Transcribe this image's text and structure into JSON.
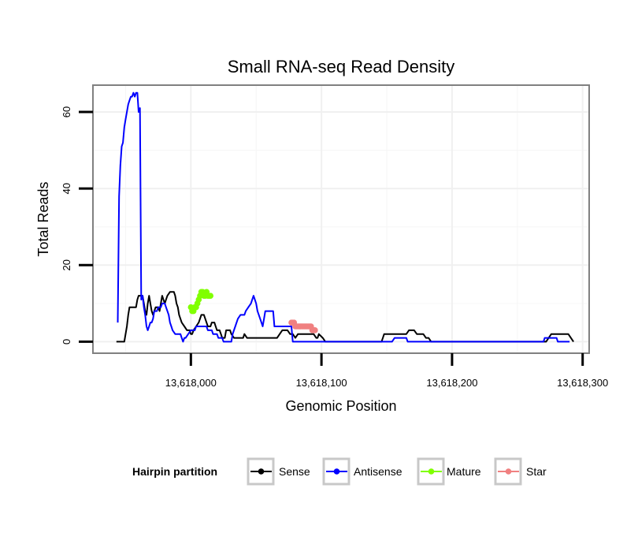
{
  "chart_data": {
    "type": "line",
    "title": "Small RNA-seq Read Density",
    "xlabel": "Genomic Position",
    "ylabel": "Total Reads",
    "xlim": [
      13617925,
      13618305
    ],
    "ylim": [
      -3,
      67
    ],
    "x_ticks": [
      13618000,
      13618100,
      13618200,
      13618300
    ],
    "x_tick_labels": [
      "13,618,000",
      "13,618,100",
      "13,618,200",
      "13,618,300"
    ],
    "y_ticks": [
      0,
      20,
      40,
      60
    ],
    "y_tick_labels": [
      "0",
      "20",
      "40",
      "60"
    ],
    "grid": true,
    "legend": {
      "title": "Hairpin partition",
      "position": "bottom",
      "entries": [
        "Sense",
        "Antisense",
        "Mature",
        "Star"
      ]
    },
    "series": [
      {
        "name": "Sense",
        "color": "#000000",
        "style": "line",
        "points": [
          [
            13617943,
            0
          ],
          [
            13617949,
            0
          ],
          [
            13617951,
            4
          ],
          [
            13617952,
            7
          ],
          [
            13617953,
            9
          ],
          [
            13617958,
            9
          ],
          [
            13617959,
            11
          ],
          [
            13617960,
            12
          ],
          [
            13617963,
            12
          ],
          [
            13617964,
            10
          ],
          [
            13617965,
            8
          ],
          [
            13617966,
            7
          ],
          [
            13617967,
            10
          ],
          [
            13617968,
            12
          ],
          [
            13617969,
            10
          ],
          [
            13617970,
            8
          ],
          [
            13617971,
            7
          ],
          [
            13617972,
            8
          ],
          [
            13617973,
            9
          ],
          [
            13617975,
            9
          ],
          [
            13617976,
            8
          ],
          [
            13617977,
            10
          ],
          [
            13617978,
            12
          ],
          [
            13617979,
            11
          ],
          [
            13617980,
            10
          ],
          [
            13617981,
            11
          ],
          [
            13617982,
            12
          ],
          [
            13617984,
            13
          ],
          [
            13617987,
            13
          ],
          [
            13617988,
            12
          ],
          [
            13617989,
            10
          ],
          [
            13617990,
            9
          ],
          [
            13617991,
            7
          ],
          [
            13617993,
            5
          ],
          [
            13617995,
            4
          ],
          [
            13617997,
            3
          ],
          [
            13617999,
            3
          ],
          [
            13618000,
            2
          ],
          [
            13618001,
            2
          ],
          [
            13618002,
            3
          ],
          [
            13618004,
            4
          ],
          [
            13618006,
            5
          ],
          [
            13618008,
            7
          ],
          [
            13618010,
            7
          ],
          [
            13618012,
            5
          ],
          [
            13618013,
            4
          ],
          [
            13618015,
            4
          ],
          [
            13618016,
            5
          ],
          [
            13618018,
            5
          ],
          [
            13618019,
            4
          ],
          [
            13618020,
            3
          ],
          [
            13618022,
            3
          ],
          [
            13618023,
            2
          ],
          [
            13618024,
            1
          ],
          [
            13618026,
            1
          ],
          [
            13618027,
            3
          ],
          [
            13618030,
            3
          ],
          [
            13618031,
            2
          ],
          [
            13618033,
            1
          ],
          [
            13618040,
            1
          ],
          [
            13618041,
            2
          ],
          [
            13618043,
            1
          ],
          [
            13618066,
            1
          ],
          [
            13618068,
            2
          ],
          [
            13618070,
            3
          ],
          [
            13618074,
            3
          ],
          [
            13618076,
            2
          ],
          [
            13618078,
            2
          ],
          [
            13618080,
            1
          ],
          [
            13618082,
            2
          ],
          [
            13618094,
            2
          ],
          [
            13618096,
            1
          ],
          [
            13618097,
            1
          ],
          [
            13618098,
            2
          ],
          [
            13618101,
            1
          ],
          [
            13618103,
            0
          ],
          [
            13618146,
            0
          ],
          [
            13618147,
            1
          ],
          [
            13618148,
            2
          ],
          [
            13618165,
            2
          ],
          [
            13618167,
            3
          ],
          [
            13618171,
            3
          ],
          [
            13618173,
            2
          ],
          [
            13618178,
            2
          ],
          [
            13618180,
            1
          ],
          [
            13618182,
            1
          ],
          [
            13618184,
            0
          ],
          [
            13618272,
            0
          ],
          [
            13618274,
            1
          ],
          [
            13618276,
            2
          ],
          [
            13618289,
            2
          ],
          [
            13618291,
            1
          ],
          [
            13618293,
            0
          ]
        ]
      },
      {
        "name": "Antisense",
        "color": "#0000ff",
        "style": "line",
        "points": [
          [
            13617944,
            5
          ],
          [
            13617945,
            38
          ],
          [
            13617946,
            46
          ],
          [
            13617947,
            51
          ],
          [
            13617948,
            52
          ],
          [
            13617949,
            56
          ],
          [
            13617950,
            58
          ],
          [
            13617951,
            60
          ],
          [
            13617952,
            62
          ],
          [
            13617953,
            63
          ],
          [
            13617954,
            64
          ],
          [
            13617955,
            64
          ],
          [
            13617956,
            65
          ],
          [
            13617957,
            64
          ],
          [
            13617958,
            65
          ],
          [
            13617959,
            65
          ],
          [
            13617960,
            60
          ],
          [
            13617961,
            61
          ],
          [
            13617962,
            11
          ],
          [
            13617963,
            12
          ],
          [
            13617964,
            9
          ],
          [
            13617965,
            7
          ],
          [
            13617966,
            4
          ],
          [
            13617967,
            3
          ],
          [
            13617968,
            4
          ],
          [
            13617969,
            5
          ],
          [
            13617970,
            5
          ],
          [
            13617971,
            6
          ],
          [
            13617972,
            8
          ],
          [
            13617974,
            8
          ],
          [
            13617975,
            9
          ],
          [
            13617977,
            9
          ],
          [
            13617978,
            10
          ],
          [
            13617980,
            10
          ],
          [
            13617981,
            9
          ],
          [
            13617982,
            8
          ],
          [
            13617983,
            7
          ],
          [
            13617984,
            5
          ],
          [
            13617985,
            4
          ],
          [
            13617986,
            3
          ],
          [
            13617988,
            2
          ],
          [
            13617992,
            2
          ],
          [
            13617993,
            1
          ],
          [
            13617994,
            0
          ],
          [
            13617995,
            1
          ],
          [
            13617996,
            1
          ],
          [
            13617998,
            2
          ],
          [
            13618000,
            3
          ],
          [
            13618003,
            3
          ],
          [
            13618004,
            4
          ],
          [
            13618012,
            4
          ],
          [
            13618013,
            3
          ],
          [
            13618016,
            3
          ],
          [
            13618017,
            2
          ],
          [
            13618020,
            2
          ],
          [
            13618021,
            1
          ],
          [
            13618024,
            1
          ],
          [
            13618025,
            0
          ],
          [
            13618031,
            0
          ],
          [
            13618032,
            2
          ],
          [
            13618034,
            4
          ],
          [
            13618036,
            6
          ],
          [
            13618038,
            7
          ],
          [
            13618041,
            7
          ],
          [
            13618042,
            8
          ],
          [
            13618044,
            9
          ],
          [
            13618046,
            10
          ],
          [
            13618048,
            12
          ],
          [
            13618050,
            10
          ],
          [
            13618051,
            8
          ],
          [
            13618052,
            7
          ],
          [
            13618054,
            5
          ],
          [
            13618055,
            4
          ],
          [
            13618056,
            6
          ],
          [
            13618057,
            8
          ],
          [
            13618063,
            8
          ],
          [
            13618064,
            4
          ],
          [
            13618077,
            4
          ],
          [
            13618078,
            0
          ],
          [
            13618154,
            0
          ],
          [
            13618156,
            1
          ],
          [
            13618165,
            1
          ],
          [
            13618166,
            0
          ],
          [
            13618270,
            0
          ],
          [
            13618271,
            1
          ],
          [
            13618280,
            1
          ],
          [
            13618281,
            0
          ],
          [
            13618290,
            0
          ]
        ]
      },
      {
        "name": "Mature",
        "color": "#80ff00",
        "style": "line+points",
        "points": [
          [
            13618000,
            9
          ],
          [
            13618001,
            8
          ],
          [
            13618002,
            8
          ],
          [
            13618003,
            9
          ],
          [
            13618004,
            9
          ],
          [
            13618005,
            10
          ],
          [
            13618006,
            11
          ],
          [
            13618007,
            12
          ],
          [
            13618008,
            13
          ],
          [
            13618009,
            13
          ],
          [
            13618010,
            12
          ],
          [
            13618011,
            12
          ],
          [
            13618012,
            13
          ],
          [
            13618013,
            12
          ],
          [
            13618014,
            12
          ],
          [
            13618015,
            12
          ]
        ]
      },
      {
        "name": "Star",
        "color": "#f08080",
        "style": "line+points",
        "points": [
          [
            13618077,
            5
          ],
          [
            13618078,
            5
          ],
          [
            13618079,
            5
          ],
          [
            13618080,
            4
          ],
          [
            13618081,
            4
          ],
          [
            13618082,
            4
          ],
          [
            13618083,
            4
          ],
          [
            13618084,
            4
          ],
          [
            13618085,
            4
          ],
          [
            13618086,
            4
          ],
          [
            13618087,
            4
          ],
          [
            13618088,
            4
          ],
          [
            13618089,
            4
          ],
          [
            13618090,
            4
          ],
          [
            13618091,
            4
          ],
          [
            13618092,
            4
          ],
          [
            13618093,
            3
          ],
          [
            13618094,
            3
          ],
          [
            13618095,
            3
          ]
        ]
      }
    ]
  }
}
